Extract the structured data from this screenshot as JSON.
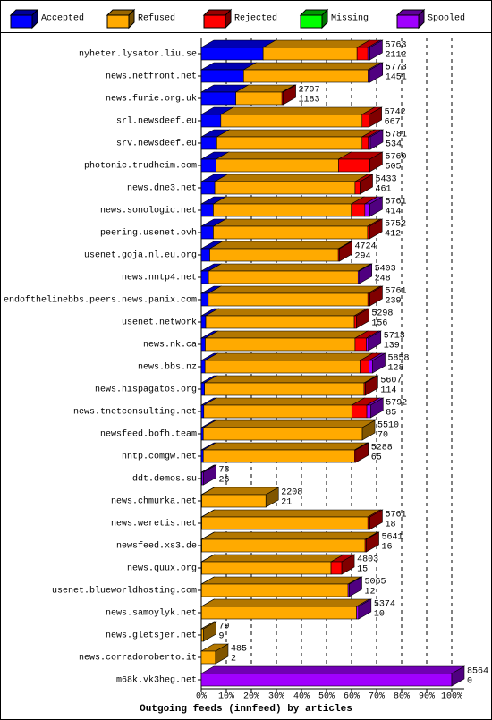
{
  "chart_data": {
    "type": "bar",
    "orientation": "horizontal",
    "stacked": true,
    "xlabel": "Outgoing feeds (innfeed) by articles",
    "categories": [
      "nyheter.lysator.liu.se",
      "news.netfront.net",
      "news.furie.org.uk",
      "srl.newsdeef.eu",
      "srv.newsdeef.eu",
      "photonic.trudheim.com",
      "news.dne3.net",
      "news.sonologic.net",
      "peering.usenet.ovh",
      "usenet.goja.nl.eu.org",
      "news.nntp4.net",
      "endofthelinebbs.peers.news.panix.com",
      "usenet.network",
      "news.nk.ca",
      "news.bbs.nz",
      "news.hispagatos.org",
      "news.tnetconsulting.net",
      "newsfeed.bofh.team",
      "nntp.comgw.net",
      "ddt.demos.su",
      "news.chmurka.net",
      "news.weretis.net",
      "newsfeed.xs3.de",
      "news.quux.org",
      "usenet.blueworldhosting.com",
      "news.samoylyk.net",
      "news.gletsjer.net",
      "news.corradoroberto.it",
      "m68k.vk3heg.net"
    ],
    "series": [
      {
        "name": "Accepted",
        "color": "#0000ff",
        "values": [
          24.7,
          16.9,
          13.8,
          7.8,
          6.2,
          5.9,
          5.4,
          4.8,
          4.8,
          3.4,
          2.9,
          2.8,
          1.8,
          1.6,
          1.5,
          1.3,
          1.0,
          0.8,
          0.8,
          0.3,
          0.2,
          0.2,
          0.2,
          0.2,
          0.1,
          0.1,
          0.1,
          0.0,
          0.0
        ]
      },
      {
        "name": "Refused",
        "color": "#ffaa00",
        "values": [
          37.5,
          49.7,
          18.4,
          56.4,
          58.0,
          48.9,
          56.0,
          55.1,
          61.6,
          51.3,
          59.7,
          63.7,
          59.3,
          59.8,
          61.9,
          63.7,
          59.1,
          63.5,
          60.4,
          0.0,
          25.6,
          66.3,
          65.2,
          51.6,
          58.5,
          61.9,
          0.8,
          5.7,
          0.0
        ]
      },
      {
        "name": "Rejected",
        "color": "#ff0000",
        "values": [
          4.3,
          0.0,
          0.5,
          2.8,
          2.5,
          12.5,
          2.0,
          5.4,
          0.8,
          0.5,
          0.0,
          0.8,
          0.8,
          4.5,
          3.5,
          0.5,
          6.0,
          0.0,
          0.5,
          0.0,
          0.0,
          0.8,
          0.5,
          4.3,
          0.0,
          0.0,
          0.0,
          0.0,
          0.0
        ]
      },
      {
        "name": "Missing",
        "color": "#00ff00",
        "values": [
          0,
          0,
          0,
          0,
          0,
          0,
          0,
          0,
          0,
          0,
          0,
          0,
          0,
          0,
          0,
          0,
          0,
          0,
          0,
          0,
          0,
          0,
          0,
          0,
          0,
          0,
          0,
          0,
          0
        ]
      },
      {
        "name": "Spooled",
        "color": "#a000ff",
        "values": [
          0.8,
          0.8,
          0.0,
          0.0,
          0.8,
          0.0,
          0.0,
          2.0,
          0.0,
          0.0,
          0.5,
          0.0,
          0.0,
          0.8,
          1.5,
          0.0,
          1.5,
          0.0,
          0.0,
          0.6,
          0.0,
          0.0,
          0.0,
          0.0,
          0.5,
          0.8,
          0.0,
          0.0,
          100.0
        ]
      }
    ],
    "offered": [
      5763,
      5773,
      2797,
      5742,
      5781,
      5760,
      5433,
      5761,
      5752,
      4724,
      5403,
      5761,
      5298,
      5713,
      5858,
      5607,
      5792,
      5510,
      5288,
      73,
      2208,
      5761,
      5641,
      4803,
      5065,
      5374,
      79,
      485,
      8564
    ],
    "accepted": [
      2112,
      1451,
      1183,
      667,
      534,
      505,
      461,
      414,
      412,
      294,
      248,
      239,
      156,
      139,
      128,
      114,
      85,
      70,
      65,
      26,
      21,
      18,
      16,
      15,
      12,
      10,
      9,
      2,
      0
    ],
    "xlim": [
      0,
      100
    ],
    "xticks": [
      {
        "value": 0,
        "label": "0%"
      },
      {
        "value": 10,
        "label": "10%"
      },
      {
        "value": 20,
        "label": "20%"
      },
      {
        "value": 30,
        "label": "30%"
      },
      {
        "value": 40,
        "label": "40%"
      },
      {
        "value": 50,
        "label": "50%"
      },
      {
        "value": 60,
        "label": "60%"
      },
      {
        "value": 70,
        "label": "70%"
      },
      {
        "value": 80,
        "label": "80%"
      },
      {
        "value": 90,
        "label": "90%"
      },
      {
        "value": 100,
        "label": "100%"
      }
    ],
    "grid": true
  }
}
